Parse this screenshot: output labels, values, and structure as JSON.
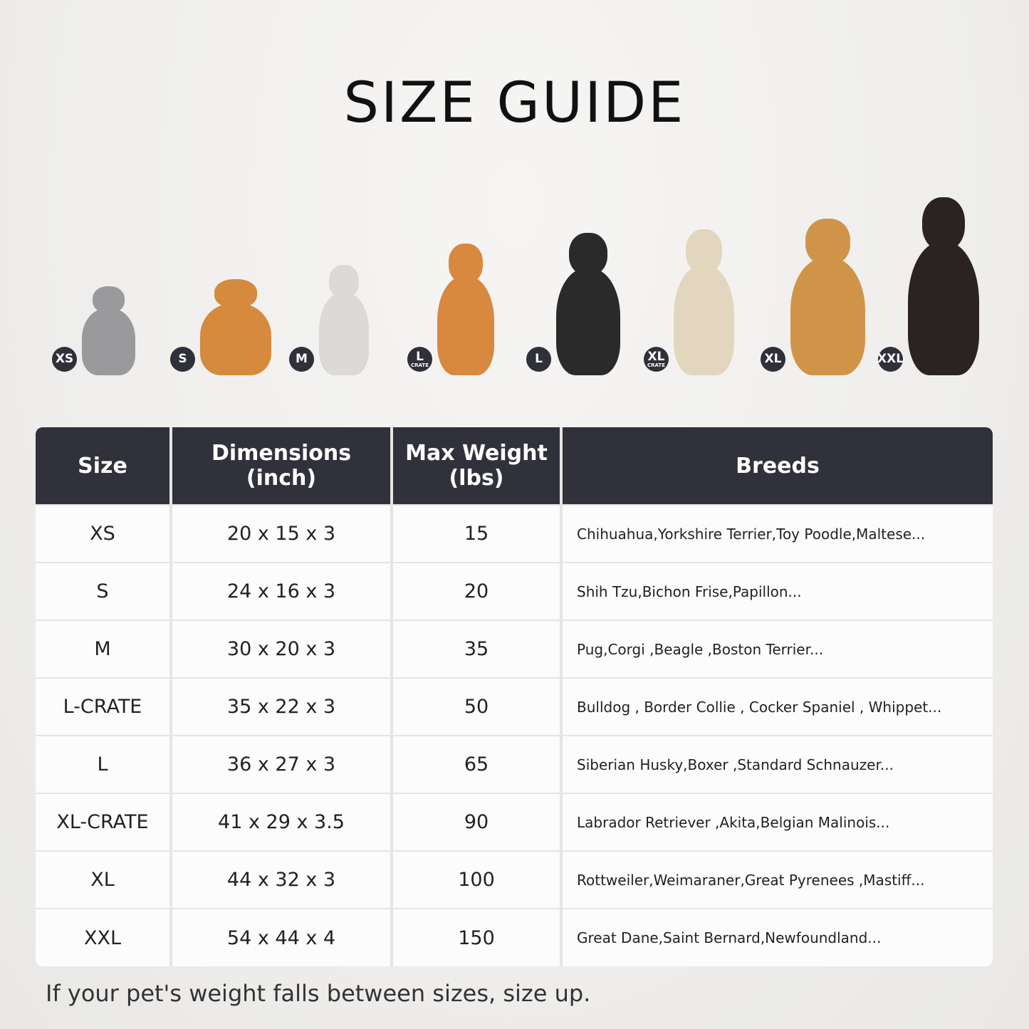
{
  "title": "SIZE GUIDE",
  "pets": [
    {
      "badge": "XS",
      "sub": "",
      "color": "#9a9a9c"
    },
    {
      "badge": "S",
      "sub": "",
      "color": "#d58a3d"
    },
    {
      "badge": "M",
      "sub": "",
      "color": "#dcdad8"
    },
    {
      "badge": "L",
      "sub": "CRATE",
      "color": "#d98840"
    },
    {
      "badge": "L",
      "sub": "",
      "color": "#2a2a2a"
    },
    {
      "badge": "XL",
      "sub": "CRATE",
      "color": "#e2d6bf"
    },
    {
      "badge": "XL",
      "sub": "",
      "color": "#cf9448"
    },
    {
      "badge": "XXL",
      "sub": "",
      "color": "#2b2222"
    }
  ],
  "table": {
    "headers": [
      "Size",
      "Dimensions\n(inch)",
      "Max Weight\n(lbs)",
      "Breeds"
    ],
    "rows": [
      [
        "XS",
        "20 x 15 x 3",
        "15",
        "Chihuahua,Yorkshire Terrier,Toy Poodle,Maltese..."
      ],
      [
        "S",
        "24 x 16 x 3",
        "20",
        "Shih Tzu,Bichon Frise,Papillon..."
      ],
      [
        "M",
        "30 x 20 x 3",
        "35",
        "Pug,Corgi ,Beagle ,Boston Terrier..."
      ],
      [
        "L-CRATE",
        "35 x 22 x 3",
        "50",
        "Bulldog , Border Collie , Cocker Spaniel , Whippet..."
      ],
      [
        "L",
        "36 x 27 x 3",
        "65",
        "Siberian Husky,Boxer ,Standard Schnauzer..."
      ],
      [
        "XL-CRATE",
        "41 x 29 x 3.5",
        "90",
        "Labrador Retriever ,Akita,Belgian Malinois..."
      ],
      [
        "XL",
        "44 x 32 x 3",
        "100",
        "Rottweiler,Weimaraner,Great Pyrenees ,Mastiff..."
      ],
      [
        "XXL",
        "54 x 44 x 4",
        "150",
        "Great Dane,Saint Bernard,Newfoundland..."
      ]
    ]
  },
  "note": "If your pet's weight falls between sizes, size up.",
  "colors": {
    "header": "#30313b",
    "badge": "#2f3039"
  }
}
